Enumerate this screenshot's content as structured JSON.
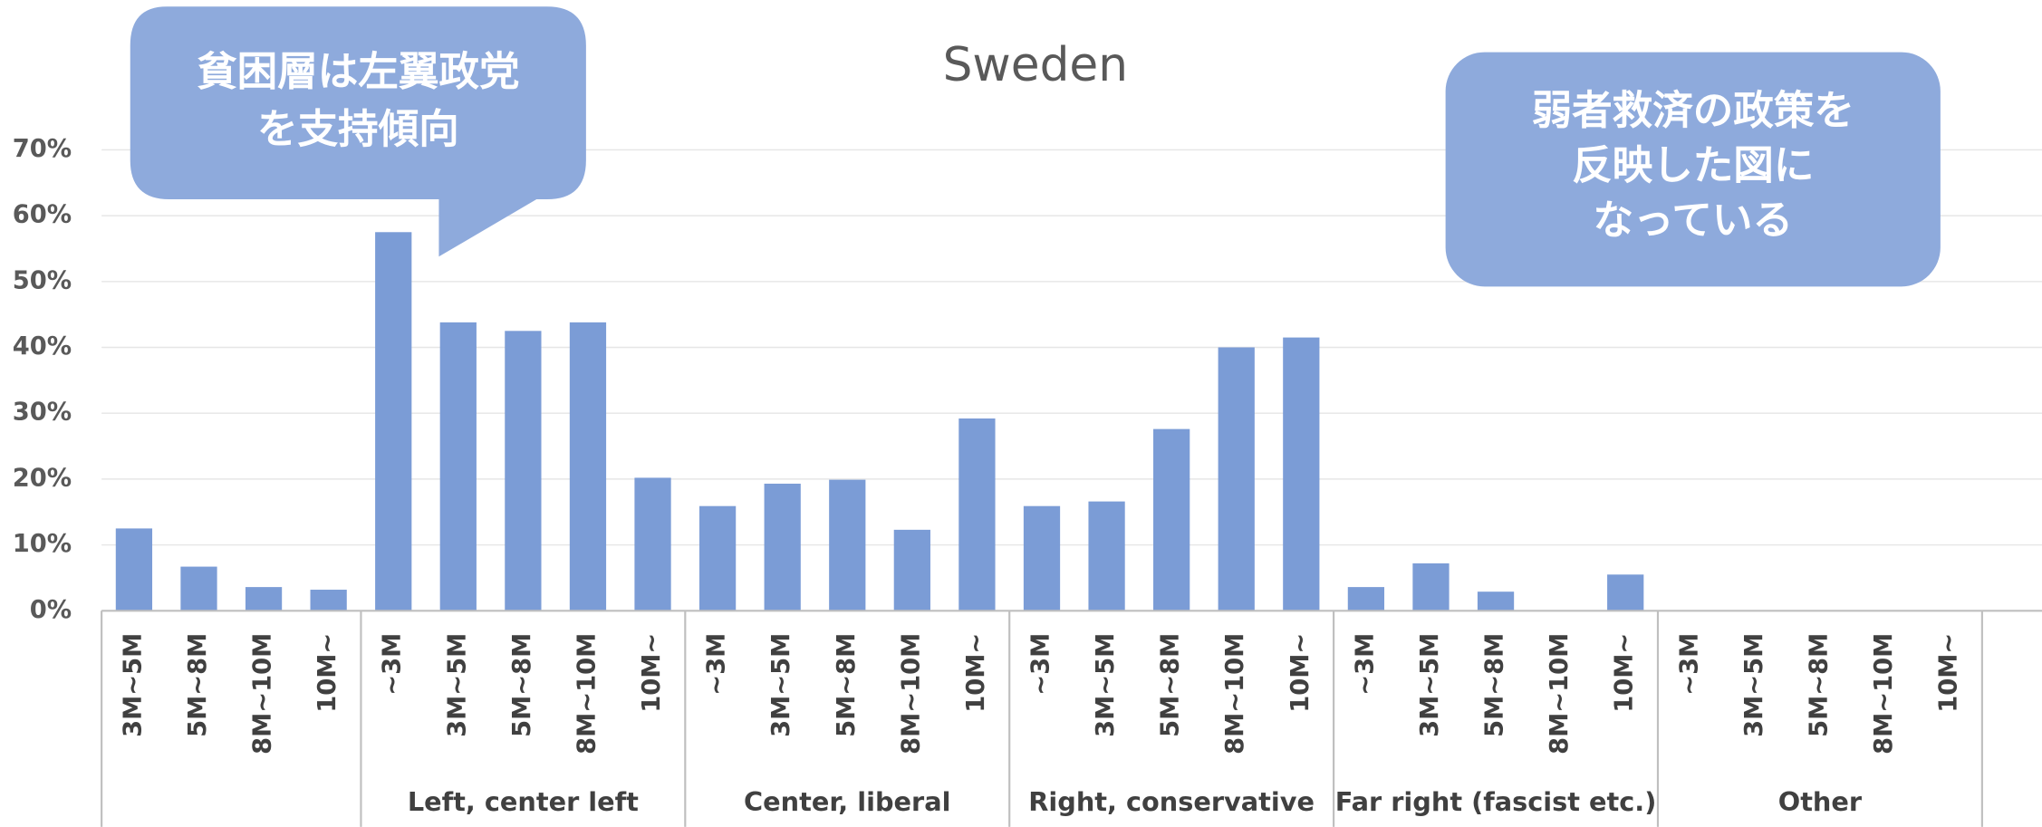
{
  "chart_data": {
    "type": "grouped_bar",
    "title": "Sweden",
    "color": "#7b9cd6",
    "grid": true,
    "ylim": [
      0,
      70
    ],
    "yticks": [
      {
        "value": 0,
        "label": "0%"
      },
      {
        "value": 10,
        "label": "10%"
      },
      {
        "value": 20,
        "label": "20%"
      },
      {
        "value": 30,
        "label": "30%"
      },
      {
        "value": 40,
        "label": "40%"
      },
      {
        "value": 50,
        "label": "50%"
      },
      {
        "value": 60,
        "label": "60%"
      },
      {
        "value": 70,
        "label": "70%"
      }
    ],
    "groups": [
      {
        "name": null,
        "categories": [
          "3M~5M",
          "5M~8M",
          "8M~10M",
          "10M~"
        ],
        "values": [
          12.5,
          6.7,
          3.6,
          3.2
        ]
      },
      {
        "name": "Left, center left",
        "categories": [
          "~3M",
          "3M~5M",
          "5M~8M",
          "8M~10M",
          "10M~"
        ],
        "values": [
          57.5,
          43.8,
          42.5,
          43.8,
          20.2
        ]
      },
      {
        "name": "Center, liberal",
        "categories": [
          "~3M",
          "3M~5M",
          "5M~8M",
          "8M~10M",
          "10M~"
        ],
        "values": [
          15.9,
          19.3,
          19.9,
          12.3,
          29.2
        ]
      },
      {
        "name": "Right, conservative",
        "categories": [
          "~3M",
          "3M~5M",
          "5M~8M",
          "8M~10M",
          "10M~"
        ],
        "values": [
          15.9,
          16.6,
          27.6,
          40.0,
          41.5
        ]
      },
      {
        "name": "Far right (fascist etc.)",
        "categories": [
          "~3M",
          "3M~5M",
          "5M~8M",
          "8M~10M",
          "10M~"
        ],
        "values": [
          3.6,
          7.2,
          2.9,
          0,
          5.5
        ]
      },
      {
        "name": "Other",
        "categories": [
          "~3M",
          "3M~5M",
          "5M~8M",
          "8M~10M",
          "10M~"
        ],
        "values": [
          0,
          0,
          0,
          0,
          0
        ]
      }
    ],
    "annotations": [
      {
        "lines": [
          "貧困層は左翼政党",
          "を支持傾向"
        ]
      },
      {
        "lines": [
          "弱者救済の政策を",
          "反映した図に",
          "なっている"
        ]
      }
    ]
  }
}
